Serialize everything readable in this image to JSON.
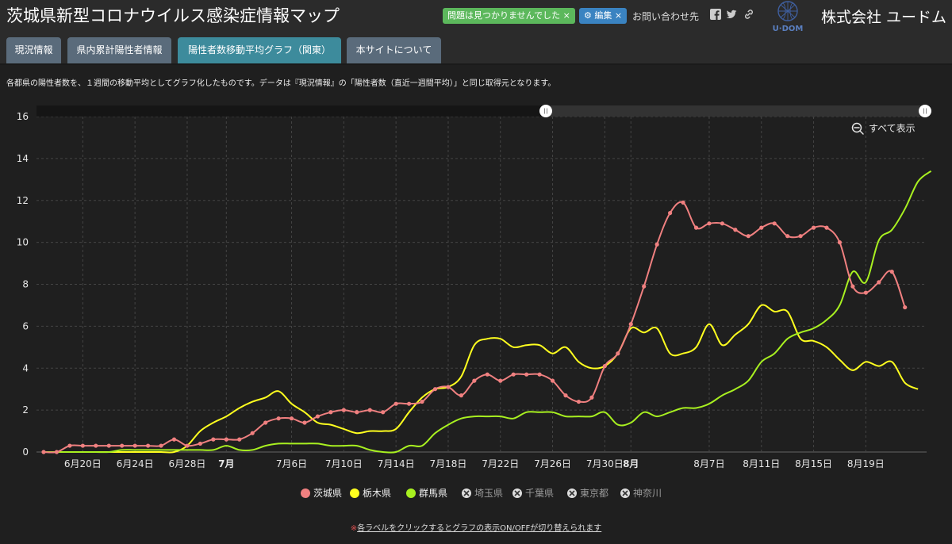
{
  "header": {
    "title": "茨城県新型コロナウイルス感染症情報マップ",
    "badge_ok": "問題は見つかりませんでした ×",
    "badge_edit": "⚙ 編集 ×",
    "contact": "お問い合わせ先",
    "logo_text": "U·DOM",
    "company": "株式会社 ユードム"
  },
  "tabs": [
    {
      "label": "現況情報",
      "active": false
    },
    {
      "label": "県内累計陽性者情報",
      "active": false
    },
    {
      "label": "陽性者数移動平均グラフ（関東）",
      "active": true
    },
    {
      "label": "本サイトについて",
      "active": false
    }
  ],
  "description": "各都県の陽性者数を、１週間の移動平均としてグラフ化したものです。データは『現況情報』の「陽性者数（直近一週間平均）」と同じ取得元となります。",
  "zoom_reset_label": "すべて表示",
  "note": {
    "mark": "※",
    "text": "各ラベルをクリックするとグラフの表示ON/OFFが切り替えられます"
  },
  "colors": {
    "ibaraki": "#f08080",
    "tochigi": "#ffff1f",
    "gunma": "#a8f020",
    "disabled": "#9a9a9a",
    "grid": "#444444"
  },
  "chart_data": {
    "type": "line",
    "x_start": "6/17",
    "ylim": [
      0,
      16
    ],
    "y_ticks": [
      0,
      2,
      4,
      6,
      8,
      10,
      12,
      14,
      16
    ],
    "x_tick_days": [
      3,
      7,
      11,
      14,
      19,
      23,
      27,
      31,
      35,
      39,
      43,
      45,
      51,
      55,
      59,
      63
    ],
    "x_tick_labels": [
      "6月20日",
      "6月24日",
      "6月28日",
      "7月",
      "7月6日",
      "7月10日",
      "7月14日",
      "7月18日",
      "7月22日",
      "7月26日",
      "7月30日",
      "8月",
      "8月7日",
      "8月11日",
      "8月15日",
      "8月19日"
    ],
    "x_tick_bold": [
      "7月",
      "8月"
    ],
    "grid": true,
    "legend_position": "bottom",
    "series": [
      {
        "name": "茨城県",
        "color_key": "ibaraki",
        "markers": true,
        "visible": true,
        "values": [
          0,
          0,
          0.3,
          0.3,
          0.3,
          0.3,
          0.3,
          0.3,
          0.3,
          0.3,
          0.6,
          0.3,
          0.4,
          0.6,
          0.6,
          0.6,
          0.9,
          1.4,
          1.6,
          1.6,
          1.4,
          1.7,
          1.9,
          2.0,
          1.9,
          2.0,
          1.9,
          2.3,
          2.3,
          2.4,
          3.0,
          3.1,
          2.7,
          3.4,
          3.7,
          3.4,
          3.7,
          3.7,
          3.7,
          3.4,
          2.7,
          2.4,
          2.6,
          4.1,
          4.7,
          6.1,
          7.9,
          9.9,
          11.4,
          11.9,
          10.7,
          10.9,
          10.9,
          10.6,
          10.3,
          10.7,
          10.9,
          10.3,
          10.3,
          10.7,
          10.7,
          10.0,
          7.9,
          7.6,
          8.1,
          8.6,
          6.9
        ]
      },
      {
        "name": "栃木県",
        "color_key": "tochigi",
        "markers": false,
        "visible": true,
        "values": [
          0,
          0,
          0,
          0,
          0,
          0,
          0,
          0,
          0,
          0,
          0,
          0.3,
          1.0,
          1.4,
          1.7,
          2.1,
          2.4,
          2.6,
          2.9,
          2.3,
          1.9,
          1.4,
          1.3,
          1.1,
          0.9,
          1.0,
          1.0,
          1.1,
          1.9,
          2.6,
          3.0,
          3.1,
          3.6,
          5.1,
          5.4,
          5.4,
          5.0,
          5.1,
          5.1,
          4.7,
          5.0,
          4.3,
          4.0,
          4.1,
          4.7,
          5.9,
          5.7,
          5.9,
          4.7,
          4.7,
          5.0,
          6.1,
          5.1,
          5.6,
          6.1,
          7.0,
          6.7,
          6.7,
          5.4,
          5.3,
          5.0,
          4.4,
          3.9,
          4.3,
          4.1,
          4.3,
          3.3,
          3.0
        ]
      },
      {
        "name": "群馬県",
        "color_key": "gunma",
        "markers": false,
        "visible": true,
        "values": [
          0,
          0,
          0,
          0,
          0,
          0,
          0.1,
          0.1,
          0.1,
          0.1,
          0.1,
          0.1,
          0.1,
          0.1,
          0.3,
          0.1,
          0.1,
          0.3,
          0.4,
          0.4,
          0.4,
          0.4,
          0.3,
          0.3,
          0.3,
          0.1,
          0,
          0,
          0.3,
          0.3,
          0.9,
          1.3,
          1.6,
          1.7,
          1.7,
          1.7,
          1.6,
          1.9,
          1.9,
          1.9,
          1.7,
          1.7,
          1.7,
          1.9,
          1.3,
          1.4,
          1.9,
          1.7,
          1.9,
          2.1,
          2.1,
          2.3,
          2.7,
          3.0,
          3.4,
          4.3,
          4.7,
          5.4,
          5.7,
          5.9,
          6.3,
          7.0,
          8.6,
          8.1,
          10.1,
          10.6,
          11.6,
          12.9,
          13.4
        ]
      },
      {
        "name": "埼玉県",
        "color_key": "disabled",
        "visible": false,
        "values": []
      },
      {
        "name": "千葉県",
        "color_key": "disabled",
        "visible": false,
        "values": []
      },
      {
        "name": "東京都",
        "color_key": "disabled",
        "visible": false,
        "values": []
      },
      {
        "name": "神奈川",
        "color_key": "disabled",
        "visible": false,
        "values": []
      }
    ]
  }
}
